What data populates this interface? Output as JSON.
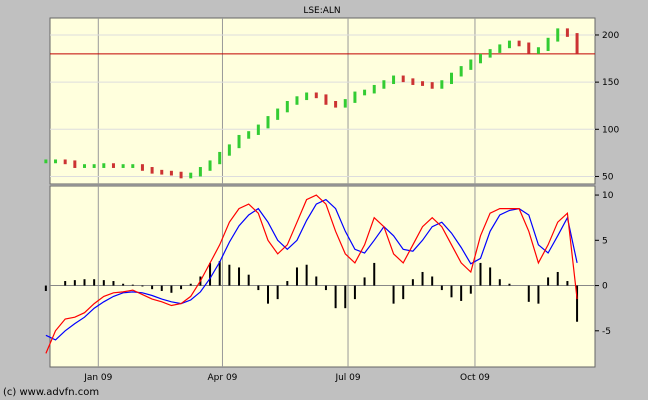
{
  "chart_data": [
    {
      "type": "ohlc-bar",
      "title": "LSE:ALN",
      "ylim": [
        42,
        218
      ],
      "yticks": [
        50,
        100,
        150,
        200
      ],
      "reference_line": {
        "value": 180,
        "color": "#c00000"
      },
      "colors": {
        "up": "#33cc33",
        "down": "#cc3333",
        "background": "#ffffdd",
        "grid": "#999999"
      },
      "x": [
        "2008-11-24",
        "2008-12-01",
        "2008-12-08",
        "2008-12-15",
        "2008-12-22",
        "2008-12-29",
        "2009-01-05",
        "2009-01-12",
        "2009-01-19",
        "2009-01-26",
        "2009-02-02",
        "2009-02-09",
        "2009-02-16",
        "2009-02-23",
        "2009-03-02",
        "2009-03-09",
        "2009-03-16",
        "2009-03-23",
        "2009-03-30",
        "2009-04-06",
        "2009-04-13",
        "2009-04-20",
        "2009-04-27",
        "2009-05-04",
        "2009-05-11",
        "2009-05-18",
        "2009-05-25",
        "2009-06-01",
        "2009-06-08",
        "2009-06-15",
        "2009-06-22",
        "2009-06-29",
        "2009-07-06",
        "2009-07-13",
        "2009-07-20",
        "2009-07-27",
        "2009-08-03",
        "2009-08-10",
        "2009-08-17",
        "2009-08-24",
        "2009-08-31",
        "2009-09-07",
        "2009-09-14",
        "2009-09-21",
        "2009-09-28",
        "2009-10-05",
        "2009-10-12",
        "2009-10-19",
        "2009-10-26",
        "2009-11-02",
        "2009-11-09",
        "2009-11-16",
        "2009-11-23",
        "2009-11-30",
        "2009-12-07",
        "2009-12-14"
      ],
      "values": [
        66,
        66,
        65,
        61,
        61,
        61,
        62,
        61,
        61,
        61,
        58,
        55,
        54,
        53,
        50,
        52,
        58,
        65,
        74,
        82,
        92,
        96,
        103,
        112,
        120,
        128,
        133,
        137,
        135,
        128,
        125,
        130,
        138,
        140,
        145,
        150,
        155,
        152,
        149,
        148,
        145,
        150,
        158,
        165,
        172,
        178,
        183,
        188,
        192,
        190,
        182,
        185,
        195,
        205,
        200,
        182
      ]
    },
    {
      "type": "line",
      "title": "",
      "ylim": [
        -9,
        11
      ],
      "yticks": [
        10,
        5,
        0,
        -5
      ],
      "xticks": [
        {
          "date": "2009-01-01",
          "label": "Jan 09"
        },
        {
          "date": "2009-04-01",
          "label": "Apr 09"
        },
        {
          "date": "2009-07-01",
          "label": "Jul 09"
        },
        {
          "date": "2009-10-01",
          "label": "Oct 09"
        }
      ],
      "colors": {
        "macd": "#ff0000",
        "signal": "#0000ff",
        "histogram": "#000000"
      },
      "x": [
        "2008-11-24",
        "2008-12-01",
        "2008-12-08",
        "2008-12-15",
        "2008-12-22",
        "2008-12-29",
        "2009-01-05",
        "2009-01-12",
        "2009-01-19",
        "2009-01-26",
        "2009-02-02",
        "2009-02-09",
        "2009-02-16",
        "2009-02-23",
        "2009-03-02",
        "2009-03-09",
        "2009-03-16",
        "2009-03-23",
        "2009-03-30",
        "2009-04-06",
        "2009-04-13",
        "2009-04-20",
        "2009-04-27",
        "2009-05-04",
        "2009-05-11",
        "2009-05-18",
        "2009-05-25",
        "2009-06-01",
        "2009-06-08",
        "2009-06-15",
        "2009-06-22",
        "2009-06-29",
        "2009-07-06",
        "2009-07-13",
        "2009-07-20",
        "2009-07-27",
        "2009-08-03",
        "2009-08-10",
        "2009-08-17",
        "2009-08-24",
        "2009-08-31",
        "2009-09-07",
        "2009-09-14",
        "2009-09-21",
        "2009-09-28",
        "2009-10-05",
        "2009-10-12",
        "2009-10-19",
        "2009-10-26",
        "2009-11-02",
        "2009-11-09",
        "2009-11-16",
        "2009-11-23",
        "2009-11-30",
        "2009-12-07",
        "2009-12-14"
      ],
      "series": [
        {
          "key": "macd",
          "values": [
            -7.5,
            -5.0,
            -3.7,
            -3.5,
            -3.0,
            -2.0,
            -1.2,
            -0.8,
            -0.7,
            -0.5,
            -1.0,
            -1.5,
            -1.8,
            -2.2,
            -2.0,
            -1.2,
            0.5,
            2.5,
            4.5,
            7.0,
            8.5,
            9.0,
            8.0,
            5.0,
            3.5,
            4.5,
            7.0,
            9.5,
            10.0,
            9.0,
            6.0,
            3.5,
            2.5,
            4.5,
            7.5,
            6.5,
            3.5,
            2.5,
            4.5,
            6.5,
            7.5,
            6.5,
            4.5,
            2.5,
            1.5,
            5.5,
            8.0,
            8.5,
            8.5,
            8.5,
            6.0,
            2.5,
            4.5,
            7.0,
            8.0,
            -1.5
          ]
        },
        {
          "key": "signal",
          "values": [
            -5.5,
            -6.0,
            -5.0,
            -4.2,
            -3.5,
            -2.5,
            -1.8,
            -1.2,
            -0.8,
            -0.7,
            -0.8,
            -1.1,
            -1.5,
            -1.8,
            -2.0,
            -1.6,
            -0.7,
            0.8,
            2.6,
            4.8,
            6.6,
            7.8,
            8.5,
            7.0,
            5.0,
            4.0,
            5.0,
            7.2,
            9.0,
            9.5,
            8.5,
            6.0,
            4.0,
            3.6,
            5.0,
            6.5,
            5.5,
            4.0,
            3.8,
            5.0,
            6.5,
            7.0,
            5.8,
            4.2,
            2.4,
            3.0,
            6.0,
            7.8,
            8.3,
            8.5,
            7.8,
            4.5,
            3.6,
            5.5,
            7.5,
            2.5
          ]
        },
        {
          "key": "histogram",
          "values": [
            -0.6,
            0.0,
            0.5,
            0.6,
            0.7,
            0.7,
            0.6,
            0.5,
            0.2,
            0.1,
            -0.1,
            -0.4,
            -0.6,
            -0.8,
            -0.4,
            0.2,
            1.0,
            2.5,
            2.7,
            2.3,
            2.0,
            1.2,
            -0.5,
            -2.0,
            -1.5,
            0.5,
            2.0,
            2.3,
            1.0,
            -0.5,
            -2.5,
            -2.5,
            -1.5,
            0.9,
            2.5,
            0.0,
            -2.0,
            -1.5,
            0.7,
            1.5,
            1.0,
            -0.5,
            -1.3,
            -1.7,
            -0.9,
            2.5,
            2.0,
            0.7,
            0.2,
            0.0,
            -1.8,
            -2.0,
            0.9,
            1.5,
            0.5,
            -4.0
          ]
        }
      ]
    }
  ],
  "footer": "(c) www.advfn.com"
}
